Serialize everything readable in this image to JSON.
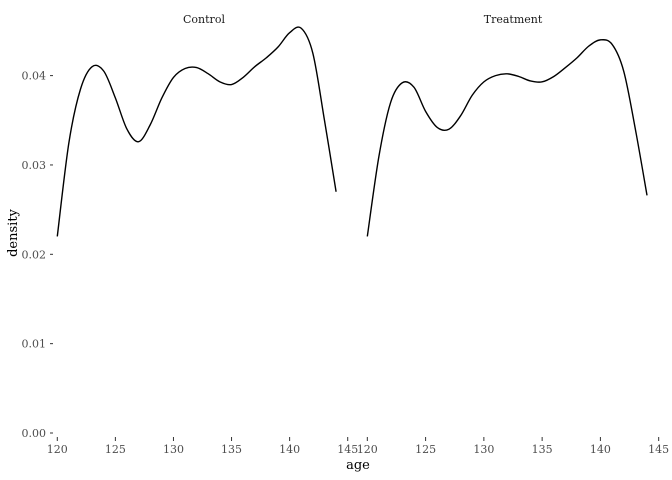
{
  "chart_data": {
    "type": "line",
    "xlabel": "age",
    "ylabel": "density",
    "xlim": [
      120,
      145
    ],
    "ylim": [
      0,
      0.046
    ],
    "x_ticks": [
      120,
      125,
      130,
      135,
      140,
      145
    ],
    "y_ticks": [
      0.0,
      0.01,
      0.02,
      0.03,
      0.04
    ],
    "x_tick_labels": [
      "120",
      "125",
      "130",
      "135",
      "140",
      "145"
    ],
    "y_tick_labels": [
      "0.00",
      "0.01",
      "0.02",
      "0.03",
      "0.04"
    ],
    "grid": false,
    "line_color": "#000000",
    "facets": [
      {
        "title": "Control",
        "x": [
          120,
          121,
          122,
          123,
          124,
          125,
          126,
          127,
          128,
          129,
          130,
          131,
          132,
          133,
          134,
          135,
          136,
          137,
          138,
          139,
          140,
          141,
          142,
          143,
          144
        ],
        "y": [
          0.022,
          0.0325,
          0.0385,
          0.041,
          0.0405,
          0.0375,
          0.034,
          0.0326,
          0.0345,
          0.0375,
          0.0398,
          0.0408,
          0.0409,
          0.0402,
          0.0393,
          0.039,
          0.0398,
          0.041,
          0.042,
          0.0432,
          0.0448,
          0.0453,
          0.0425,
          0.035,
          0.027
        ]
      },
      {
        "title": "Treatment",
        "x": [
          120,
          121,
          122,
          123,
          124,
          125,
          126,
          127,
          128,
          129,
          130,
          131,
          132,
          133,
          134,
          135,
          136,
          137,
          138,
          139,
          140,
          141,
          142,
          143,
          144
        ],
        "y": [
          0.022,
          0.031,
          0.037,
          0.0392,
          0.0387,
          0.036,
          0.0342,
          0.034,
          0.0355,
          0.0378,
          0.0393,
          0.04,
          0.0402,
          0.0399,
          0.0394,
          0.0393,
          0.0399,
          0.0409,
          0.042,
          0.0433,
          0.044,
          0.0435,
          0.0405,
          0.034,
          0.0266
        ]
      }
    ]
  }
}
